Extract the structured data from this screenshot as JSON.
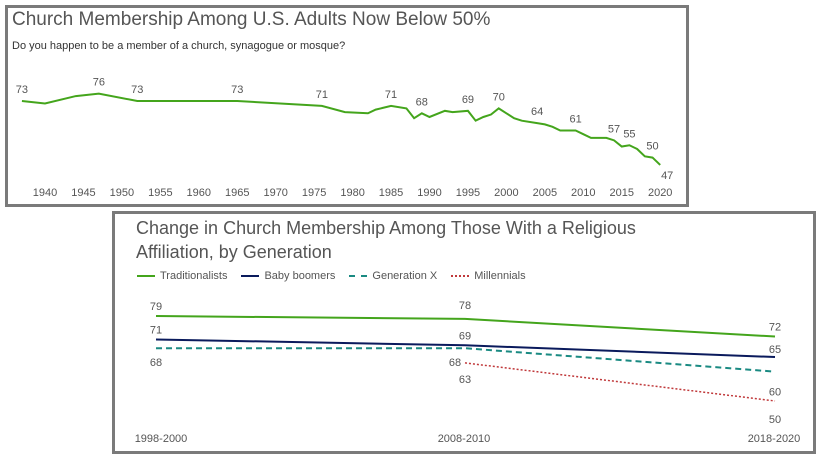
{
  "chart_data": [
    {
      "type": "line",
      "title": "Church Membership Among U.S. Adults Now Below 50%",
      "subtitle": "Do you happen to be a member of a church, synagogue or mosque?",
      "color": "#44a51c",
      "xlim": [
        1937,
        2020
      ],
      "xticks": [
        1940,
        1945,
        1950,
        1955,
        1960,
        1965,
        1970,
        1975,
        1980,
        1985,
        1990,
        1995,
        2000,
        2005,
        2010,
        2015,
        2020
      ],
      "grid": false,
      "points": [
        {
          "x": 1937,
          "y": 73,
          "label": "73"
        },
        {
          "x": 1940,
          "y": 72
        },
        {
          "x": 1944,
          "y": 75
        },
        {
          "x": 1947,
          "y": 76,
          "label": "76"
        },
        {
          "x": 1952,
          "y": 73,
          "label": "73"
        },
        {
          "x": 1965,
          "y": 73,
          "label": "73"
        },
        {
          "x": 1976,
          "y": 71,
          "label": "71"
        },
        {
          "x": 1979,
          "y": 68.5
        },
        {
          "x": 1982,
          "y": 68
        },
        {
          "x": 1983,
          "y": 69.5
        },
        {
          "x": 1985,
          "y": 71,
          "label": "71"
        },
        {
          "x": 1987,
          "y": 70
        },
        {
          "x": 1988,
          "y": 66
        },
        {
          "x": 1989,
          "y": 68,
          "label": "68"
        },
        {
          "x": 1990,
          "y": 66.5
        },
        {
          "x": 1992,
          "y": 69
        },
        {
          "x": 1993,
          "y": 68.5
        },
        {
          "x": 1995,
          "y": 69,
          "label": "69"
        },
        {
          "x": 1996,
          "y": 65
        },
        {
          "x": 1997,
          "y": 66.5
        },
        {
          "x": 1998,
          "y": 67.5
        },
        {
          "x": 1999,
          "y": 70,
          "label": "70"
        },
        {
          "x": 2000,
          "y": 68
        },
        {
          "x": 2001,
          "y": 66
        },
        {
          "x": 2002,
          "y": 65
        },
        {
          "x": 2004,
          "y": 64,
          "label": "64"
        },
        {
          "x": 2005,
          "y": 63.5
        },
        {
          "x": 2006,
          "y": 62.5
        },
        {
          "x": 2007,
          "y": 61
        },
        {
          "x": 2008,
          "y": 61
        },
        {
          "x": 2009,
          "y": 61,
          "label": "61"
        },
        {
          "x": 2010,
          "y": 59.5
        },
        {
          "x": 2011,
          "y": 58
        },
        {
          "x": 2013,
          "y": 58
        },
        {
          "x": 2014,
          "y": 57,
          "label": "57"
        },
        {
          "x": 2015,
          "y": 54.5
        },
        {
          "x": 2016,
          "y": 55,
          "label": "55"
        },
        {
          "x": 2017,
          "y": 53.5
        },
        {
          "x": 2018,
          "y": 50.5
        },
        {
          "x": 2019,
          "y": 50,
          "label": "50"
        },
        {
          "x": 2020,
          "y": 47,
          "label": "47",
          "below": true
        }
      ]
    },
    {
      "type": "line",
      "title": "Change in Church Membership Among Those With a Religious Affiliation, by Generation",
      "title_lines": [
        "Change in Church Membership Among Those With a Religious",
        "Affiliation, by Generation"
      ],
      "categories": [
        "1998-2000",
        "2008-2010",
        "2018-2020"
      ],
      "legend": "top-left",
      "grid": false,
      "series": [
        {
          "name": "Traditionalists",
          "color": "#44a51c",
          "dash": "solid",
          "values": [
            79,
            78,
            72
          ]
        },
        {
          "name": "Baby boomers",
          "color": "#0a1a5c",
          "dash": "solid",
          "values": [
            71,
            69,
            65
          ]
        },
        {
          "name": "Generation X",
          "color": "#1a8a82",
          "dash": "dashed",
          "values": [
            68,
            68,
            60
          ]
        },
        {
          "name": "Millennials",
          "color": "#c0393b",
          "dash": "dotted",
          "values": [
            null,
            63,
            50
          ]
        }
      ]
    }
  ]
}
